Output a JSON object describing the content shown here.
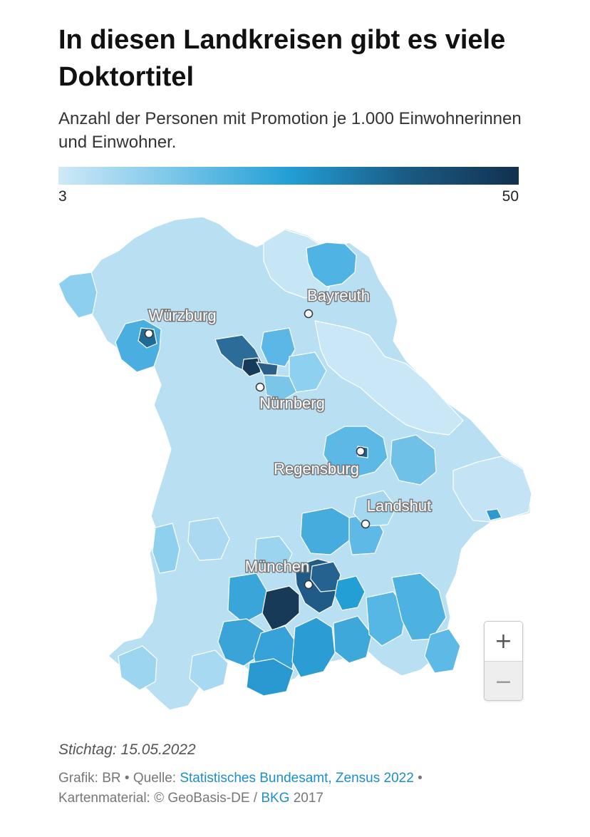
{
  "title": "In diesen Landkreisen gibt es viele Doktortitel",
  "subtitle": "Anzahl der Personen mit Promotion je 1.000 Einwohnerinnen und Einwohner.",
  "legend": {
    "min": "3",
    "max": "50",
    "colors": [
      "#cfe9f7",
      "#7ac6e9",
      "#239fd6",
      "#1a5c86",
      "#12314e"
    ]
  },
  "cities": [
    {
      "name": "Bayreuth"
    },
    {
      "name": "Würzburg"
    },
    {
      "name": "Nürnberg"
    },
    {
      "name": "Regensburg"
    },
    {
      "name": "Landshut"
    },
    {
      "name": "München"
    }
  ],
  "zoom": {
    "in": "+",
    "out": "−"
  },
  "stichtag": "Stichtag: 15.05.2022",
  "footer": {
    "grafik": "Grafik: BR",
    "sep1": " • ",
    "quelle_prefix": "Quelle: ",
    "quelle_link": "Statistisches Bundesamt, Zensus 2022",
    "sep2": " • ",
    "karten_prefix": "Kartenmaterial: © GeoBasis-DE / ",
    "karten_link": "BKG",
    "karten_suffix": " 2017"
  }
}
